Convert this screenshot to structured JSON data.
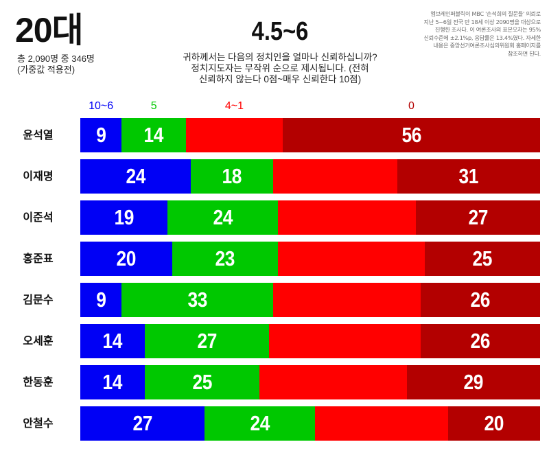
{
  "header": {
    "age_group": "20대",
    "sample_line1": "총 2,090명 중 346명",
    "sample_line2": "(가중값 적용전)",
    "range_title": "4.5~6",
    "question_lines": [
      "귀하께서는 다음의 정치인을 얼마나 신뢰하십니까?",
      "정치지도자는 무작위 순으로 제시됩니다. (전혀",
      "신뢰하지 않는다 0점~매우 신뢰한다 10점)"
    ],
    "note_lines": [
      "엠브레인퍼블릭이 MBC '손석희의 질문들' 의뢰로",
      "지난 5~6일 전국 만 18세 이상 2090명을 대상으로",
      "진행한 조사다. 이 여론조사의 표본오차는 95%",
      "신뢰수준에 ±2.1%p, 응답률은 13.4%였다. 자세한",
      "내용은 중앙선거여론조사심의위원회 홈페이지를",
      "참조하면 된다."
    ]
  },
  "colors": {
    "score_10_6": "#0000F5",
    "score_5": "#00C800",
    "score_4_1": "#FF0000",
    "score_0": "#B30000"
  },
  "legend": [
    {
      "label": "10~6",
      "color": "#0000F5"
    },
    {
      "label": "5",
      "color": "#00C800"
    },
    {
      "label": "4~1",
      "color": "#FF0000"
    },
    {
      "label": "0",
      "color": "#B30000"
    }
  ],
  "chart_data": {
    "type": "bar",
    "orientation": "horizontal",
    "stacked": true,
    "normalized_percent": true,
    "title": "4.5~6",
    "subtitle": "20대 — 총 2,090명 중 346명 (가중값 적용전)",
    "question": "귀하께서는 다음의 정치인을 얼마나 신뢰하십니까? 정치지도자는 무작위 순으로 제시됩니다. (전혀 신뢰하지 않는다 0점~매우 신뢰한다 10점)",
    "xlabel": "",
    "ylabel": "",
    "xlim": [
      0,
      100
    ],
    "grid": false,
    "legend_position": "top",
    "categories": [
      "윤석열",
      "이재명",
      "이준석",
      "홍준표",
      "김문수",
      "오세훈",
      "한동훈",
      "안철수"
    ],
    "series": [
      {
        "name": "10~6",
        "color": "#0000F5",
        "values": [
          9,
          24,
          19,
          20,
          9,
          14,
          14,
          27
        ],
        "labeled": true
      },
      {
        "name": "5",
        "color": "#00C800",
        "values": [
          14,
          18,
          24,
          23,
          33,
          27,
          25,
          24
        ],
        "labeled": true
      },
      {
        "name": "4~1",
        "color": "#FF0000",
        "values": [
          21,
          27,
          30,
          32,
          32,
          33,
          32,
          29
        ],
        "labeled": false
      },
      {
        "name": "0",
        "color": "#B30000",
        "values": [
          56,
          31,
          27,
          25,
          26,
          26,
          29,
          20
        ],
        "labeled": true
      }
    ]
  },
  "rows": [
    {
      "name": "윤석열",
      "v1": 9,
      "v2": 14,
      "v3": 21,
      "v4": 56,
      "l1": "9",
      "l2": "14",
      "l3": "",
      "l4": "56"
    },
    {
      "name": "이재명",
      "v1": 24,
      "v2": 18,
      "v3": 27,
      "v4": 31,
      "l1": "24",
      "l2": "18",
      "l3": "",
      "l4": "31"
    },
    {
      "name": "이준석",
      "v1": 19,
      "v2": 24,
      "v3": 30,
      "v4": 27,
      "l1": "19",
      "l2": "24",
      "l3": "",
      "l4": "27"
    },
    {
      "name": "홍준표",
      "v1": 20,
      "v2": 23,
      "v3": 32,
      "v4": 25,
      "l1": "20",
      "l2": "23",
      "l3": "",
      "l4": "25"
    },
    {
      "name": "김문수",
      "v1": 9,
      "v2": 33,
      "v3": 32,
      "v4": 26,
      "l1": "9",
      "l2": "33",
      "l3": "",
      "l4": "26"
    },
    {
      "name": "오세훈",
      "v1": 14,
      "v2": 27,
      "v3": 33,
      "v4": 26,
      "l1": "14",
      "l2": "27",
      "l3": "",
      "l4": "26"
    },
    {
      "name": "한동훈",
      "v1": 14,
      "v2": 25,
      "v3": 32,
      "v4": 29,
      "l1": "14",
      "l2": "25",
      "l3": "",
      "l4": "29"
    },
    {
      "name": "안철수",
      "v1": 27,
      "v2": 24,
      "v3": 29,
      "v4": 20,
      "l1": "27",
      "l2": "24",
      "l3": "",
      "l4": "20"
    }
  ]
}
